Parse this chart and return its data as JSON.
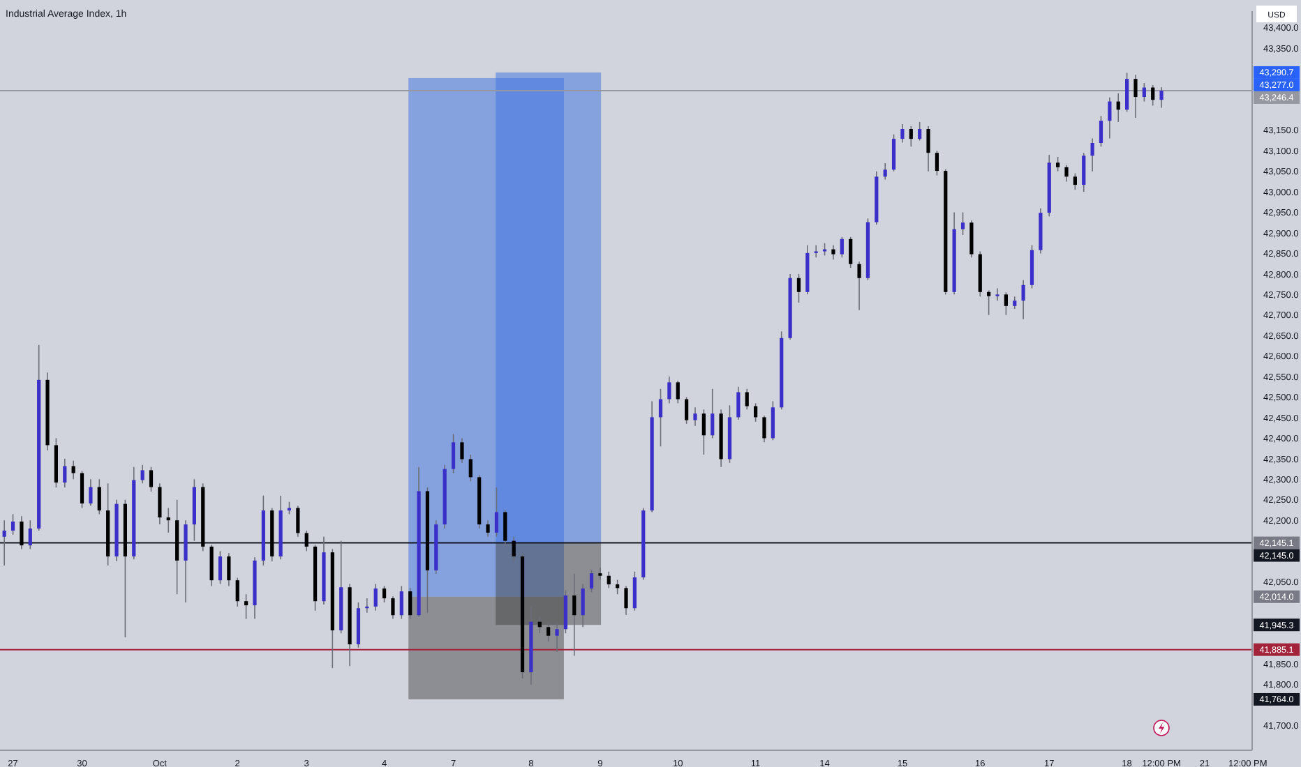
{
  "chart_data": {
    "type": "candlestick",
    "title": "Industrial Average Index, 1h",
    "categories": [
      null,
      "27",
      null,
      null,
      null,
      null,
      null,
      null,
      null,
      "30",
      null,
      null,
      null,
      null,
      null,
      null,
      null,
      null,
      "Oct",
      null,
      null,
      null,
      null,
      null,
      null,
      null,
      null,
      "2",
      null,
      null,
      null,
      null,
      null,
      null,
      null,
      "3",
      null,
      null,
      null,
      null,
      null,
      null,
      null,
      null,
      "4",
      null,
      null,
      null,
      null,
      null,
      null,
      null,
      "7",
      null,
      null,
      null,
      null,
      null,
      null,
      null,
      null,
      "8",
      null,
      null,
      null,
      null,
      null,
      null,
      null,
      "9",
      null,
      null,
      null,
      null,
      null,
      null,
      null,
      null,
      "10",
      null,
      null,
      null,
      null,
      null,
      null,
      null,
      null,
      "11",
      null,
      null,
      null,
      null,
      null,
      null,
      null,
      "14",
      null,
      null,
      null,
      null,
      null,
      null,
      null,
      null,
      "15",
      null,
      null,
      null,
      null,
      null,
      null,
      null,
      null,
      "16",
      null,
      null,
      null,
      null,
      null,
      null,
      null,
      "17",
      null,
      null,
      null,
      null,
      null,
      null,
      null,
      null,
      "18",
      null,
      null,
      null,
      "12:00 PM",
      null,
      null,
      null,
      null,
      "21",
      null,
      null,
      null,
      null,
      "12:00 PM"
    ],
    "ohlc": [
      [
        42160,
        42200,
        42090,
        42175
      ],
      [
        42175,
        42215,
        42165,
        42197
      ],
      [
        42197,
        42210,
        42130,
        42139
      ],
      [
        42139,
        42200,
        42130,
        42180
      ],
      [
        42180,
        42627,
        42175,
        42542
      ],
      [
        42542,
        42560,
        42370,
        42383
      ],
      [
        42383,
        42400,
        42280,
        42292
      ],
      [
        42292,
        42350,
        42280,
        42332
      ],
      [
        42332,
        42345,
        42300,
        42315
      ],
      [
        42315,
        42320,
        42230,
        42241
      ],
      [
        42241,
        42300,
        42235,
        42281
      ],
      [
        42281,
        42300,
        42215,
        42224
      ],
      [
        42224,
        42290,
        42090,
        42112
      ],
      [
        42112,
        42250,
        42100,
        42240
      ],
      [
        42240,
        42250,
        41915,
        42112
      ],
      [
        42112,
        42330,
        42105,
        42298
      ],
      [
        42298,
        42335,
        42290,
        42322
      ],
      [
        42322,
        42330,
        42270,
        42281
      ],
      [
        42281,
        42290,
        42190,
        42207
      ],
      [
        42207,
        42230,
        42170,
        42200
      ],
      [
        42200,
        42250,
        42020,
        42102
      ],
      [
        42102,
        42200,
        42000,
        42190
      ],
      [
        42190,
        42300,
        42150,
        42281
      ],
      [
        42281,
        42290,
        42125,
        42136
      ],
      [
        42136,
        42140,
        42040,
        42054
      ],
      [
        42054,
        42125,
        42045,
        42112
      ],
      [
        42112,
        42120,
        42040,
        42054
      ],
      [
        42054,
        42060,
        41990,
        42003
      ],
      [
        42003,
        42020,
        41960,
        41993
      ],
      [
        41993,
        42110,
        41960,
        42102
      ],
      [
        42102,
        42260,
        42090,
        42224
      ],
      [
        42224,
        42230,
        42100,
        42112
      ],
      [
        42112,
        42260,
        42105,
        42224
      ],
      [
        42224,
        42245,
        42215,
        42230
      ],
      [
        42230,
        42235,
        42160,
        42169
      ],
      [
        42169,
        42175,
        42125,
        42136
      ],
      [
        42136,
        42140,
        41980,
        42003
      ],
      [
        42003,
        42160,
        41995,
        42122
      ],
      [
        42122,
        42130,
        41840,
        41932
      ],
      [
        41932,
        42150,
        41925,
        42037
      ],
      [
        42037,
        42045,
        41845,
        41898
      ],
      [
        41898,
        42000,
        41890,
        41986
      ],
      [
        41986,
        42010,
        41975,
        41990
      ],
      [
        41990,
        42045,
        41980,
        42034
      ],
      [
        42034,
        42040,
        42000,
        42010
      ],
      [
        42010,
        42015,
        41960,
        41969
      ],
      [
        41969,
        42040,
        41960,
        42027
      ],
      [
        42027,
        42035,
        41960,
        41969
      ],
      [
        41969,
        42330,
        41965,
        42271
      ],
      [
        42271,
        42280,
        41975,
        42078
      ],
      [
        42078,
        42200,
        42070,
        42190
      ],
      [
        42190,
        42335,
        42180,
        42325
      ],
      [
        42325,
        42410,
        42315,
        42390
      ],
      [
        42390,
        42400,
        42340,
        42349
      ],
      [
        42349,
        42360,
        42295,
        42305
      ],
      [
        42305,
        42310,
        42180,
        42190
      ],
      [
        42190,
        42200,
        42160,
        42170
      ],
      [
        42170,
        42280,
        42160,
        42220
      ],
      [
        42220,
        42225,
        42140,
        42150
      ],
      [
        42150,
        42160,
        42100,
        42112
      ],
      [
        42112,
        42120,
        41815,
        41830
      ],
      [
        41830,
        41990,
        41800,
        41953
      ],
      [
        41953,
        41965,
        41925,
        41940
      ],
      [
        41940,
        41950,
        41905,
        41919
      ],
      [
        41919,
        41950,
        41880,
        41935
      ],
      [
        41935,
        42030,
        41925,
        42017
      ],
      [
        42017,
        42070,
        41870,
        41969
      ],
      [
        41969,
        42045,
        41940,
        42034
      ],
      [
        42034,
        42080,
        42025,
        42071
      ],
      [
        42071,
        42085,
        42055,
        42065
      ],
      [
        42065,
        42075,
        42035,
        42044
      ],
      [
        42044,
        42055,
        42020,
        42035
      ],
      [
        42035,
        42040,
        41970,
        41986
      ],
      [
        41986,
        42075,
        41980,
        42061
      ],
      [
        42061,
        42230,
        42055,
        42224
      ],
      [
        42224,
        42490,
        42220,
        42451
      ],
      [
        42451,
        42520,
        42380,
        42495
      ],
      [
        42495,
        42550,
        42485,
        42536
      ],
      [
        42536,
        42540,
        42485,
        42495
      ],
      [
        42495,
        42500,
        42435,
        42444
      ],
      [
        42444,
        42475,
        42430,
        42460
      ],
      [
        42460,
        42470,
        42360,
        42407
      ],
      [
        42407,
        42520,
        42400,
        42460
      ],
      [
        42460,
        42470,
        42330,
        42349
      ],
      [
        42349,
        42480,
        42340,
        42451
      ],
      [
        42451,
        42525,
        42445,
        42512
      ],
      [
        42512,
        42520,
        42470,
        42478
      ],
      [
        42478,
        42485,
        42440,
        42451
      ],
      [
        42451,
        42455,
        42390,
        42400
      ],
      [
        42400,
        42490,
        42395,
        42475
      ],
      [
        42475,
        42660,
        42470,
        42644
      ],
      [
        42644,
        42800,
        42640,
        42790
      ],
      [
        42790,
        42800,
        42730,
        42756
      ],
      [
        42756,
        42870,
        42750,
        42851
      ],
      [
        42851,
        42870,
        42840,
        42855
      ],
      [
        42855,
        42875,
        42845,
        42860
      ],
      [
        42860,
        42870,
        42835,
        42848
      ],
      [
        42848,
        42890,
        42840,
        42885
      ],
      [
        42885,
        42890,
        42815,
        42824
      ],
      [
        42824,
        42830,
        42712,
        42790
      ],
      [
        42790,
        42935,
        42785,
        42926
      ],
      [
        42926,
        43050,
        42920,
        43037
      ],
      [
        43037,
        43070,
        43030,
        43054
      ],
      [
        43054,
        43140,
        43050,
        43129
      ],
      [
        43129,
        43165,
        43120,
        43153
      ],
      [
        43153,
        43160,
        43110,
        43129
      ],
      [
        43129,
        43170,
        43125,
        43153
      ],
      [
        43153,
        43160,
        43050,
        43095
      ],
      [
        43095,
        43100,
        43040,
        43051
      ],
      [
        43051,
        43055,
        42750,
        42756
      ],
      [
        42756,
        42950,
        42750,
        42909
      ],
      [
        42909,
        42950,
        42895,
        42925
      ],
      [
        42925,
        42930,
        42840,
        42848
      ],
      [
        42848,
        42855,
        42745,
        42756
      ],
      [
        42756,
        42760,
        42700,
        42746
      ],
      [
        42746,
        42765,
        42735,
        42750
      ],
      [
        42750,
        42755,
        42700,
        42722
      ],
      [
        42722,
        42745,
        42715,
        42735
      ],
      [
        42735,
        42785,
        42690,
        42773
      ],
      [
        42773,
        42870,
        42765,
        42858
      ],
      [
        42858,
        42960,
        42850,
        42949
      ],
      [
        42949,
        43090,
        42940,
        43071
      ],
      [
        43071,
        43085,
        43050,
        43060
      ],
      [
        43060,
        43065,
        43025,
        43037
      ],
      [
        43037,
        43045,
        43005,
        43017
      ],
      [
        43017,
        43095,
        43000,
        43088
      ],
      [
        43088,
        43130,
        43050,
        43119
      ],
      [
        43119,
        43185,
        43110,
        43173
      ],
      [
        43173,
        43230,
        43130,
        43220
      ],
      [
        43220,
        43240,
        43170,
        43200
      ],
      [
        43200,
        43290,
        43195,
        43275
      ],
      [
        43275,
        43285,
        43180,
        43231
      ],
      [
        43231,
        43265,
        43220,
        43254
      ],
      [
        43254,
        43260,
        43210,
        43224
      ],
      [
        43224,
        43255,
        43205,
        43246.4
      ],
      null,
      null,
      null,
      null,
      null,
      null,
      null,
      null,
      null,
      null
    ],
    "ylim": [
      41640,
      43440
    ],
    "yticks": [
      {
        "value": 41700,
        "label": "41,700.0"
      },
      {
        "value": 41800,
        "label": "41,800.0"
      },
      {
        "value": 41850,
        "label": "41,850.0"
      },
      {
        "value": 42050,
        "label": "42,050.0"
      },
      {
        "value": 42200,
        "label": "42,200.0"
      },
      {
        "value": 42250,
        "label": "42,250.0"
      },
      {
        "value": 42300,
        "label": "42,300.0"
      },
      {
        "value": 42350,
        "label": "42,350.0"
      },
      {
        "value": 42400,
        "label": "42,400.0"
      },
      {
        "value": 42450,
        "label": "42,450.0"
      },
      {
        "value": 42500,
        "label": "42,500.0"
      },
      {
        "value": 42550,
        "label": "42,550.0"
      },
      {
        "value": 42600,
        "label": "42,600.0"
      },
      {
        "value": 42650,
        "label": "42,650.0"
      },
      {
        "value": 42700,
        "label": "42,700.0"
      },
      {
        "value": 42750,
        "label": "42,750.0"
      },
      {
        "value": 42800,
        "label": "42,800.0"
      },
      {
        "value": 42850,
        "label": "42,850.0"
      },
      {
        "value": 42900,
        "label": "42,900.0"
      },
      {
        "value": 42950,
        "label": "42,950.0"
      },
      {
        "value": 43000,
        "label": "43,000.0"
      },
      {
        "value": 43050,
        "label": "43,050.0"
      },
      {
        "value": 43100,
        "label": "43,100.0"
      },
      {
        "value": 43150,
        "label": "43,150.0"
      },
      {
        "value": 43350,
        "label": "43,350.0"
      },
      {
        "value": 43400,
        "label": "43,400.0"
      }
    ],
    "ref_lines": [
      {
        "axis": "y",
        "value": 43246.4,
        "label": "43,246.4",
        "color": "#9598a1"
      },
      {
        "axis": "y",
        "value": 42145.0,
        "label": "42,145.0",
        "color": "#131722"
      },
      {
        "axis": "y",
        "value": 41885.1,
        "label": "41,885.1",
        "color": "#a3243a"
      }
    ],
    "annotations": [
      "USD",
      "43,290.7",
      "43,277.0",
      "42,145.1",
      "42,014.0",
      "41,945.3",
      "41,764.0"
    ]
  }
}
